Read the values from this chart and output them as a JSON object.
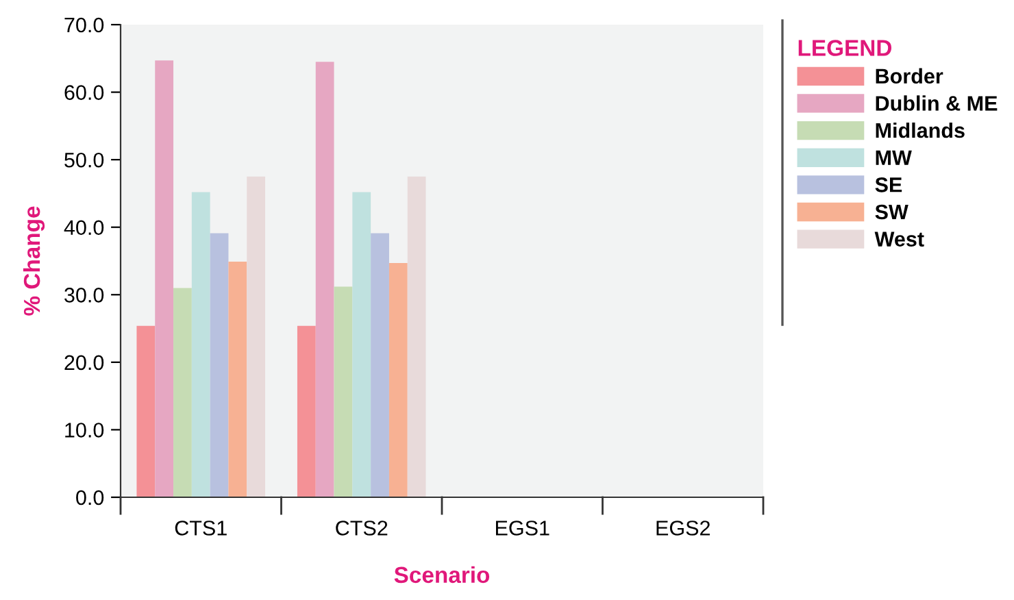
{
  "chart_data": {
    "type": "bar",
    "xlabel": "Scenario",
    "ylabel": "% Change",
    "legend_title": "LEGEND",
    "legend": "right",
    "grid": false,
    "categories": [
      "CTS1",
      "CTS2",
      "EGS1",
      "EGS2"
    ],
    "ylim": [
      0,
      70
    ],
    "yticks": [
      {
        "value": 0,
        "label": "0.0"
      },
      {
        "value": 10,
        "label": "10.0"
      },
      {
        "value": 20,
        "label": "20.0"
      },
      {
        "value": 30,
        "label": "30.0"
      },
      {
        "value": 40,
        "label": "40.0"
      },
      {
        "value": 50,
        "label": "50.0"
      },
      {
        "value": 60,
        "label": "60.0"
      },
      {
        "value": 70,
        "label": "70.0"
      }
    ],
    "series": [
      {
        "name": "Border",
        "color": "#f49196",
        "values": [
          25.4,
          25.4,
          null,
          null
        ]
      },
      {
        "name": "Dublin & ME",
        "color": "#e6a7c2",
        "values": [
          64.7,
          64.5,
          null,
          null
        ]
      },
      {
        "name": "Midlands",
        "color": "#c6dcb4",
        "values": [
          31.0,
          31.2,
          null,
          null
        ]
      },
      {
        "name": "MW",
        "color": "#bfe1df",
        "values": [
          45.2,
          45.2,
          null,
          null
        ]
      },
      {
        "name": "SE",
        "color": "#b8c1df",
        "values": [
          39.1,
          39.1,
          null,
          null
        ]
      },
      {
        "name": "SW",
        "color": "#f7b193",
        "values": [
          34.9,
          34.7,
          null,
          null
        ]
      },
      {
        "name": "West",
        "color": "#e8dada",
        "values": [
          47.5,
          47.5,
          null,
          null
        ]
      }
    ]
  }
}
